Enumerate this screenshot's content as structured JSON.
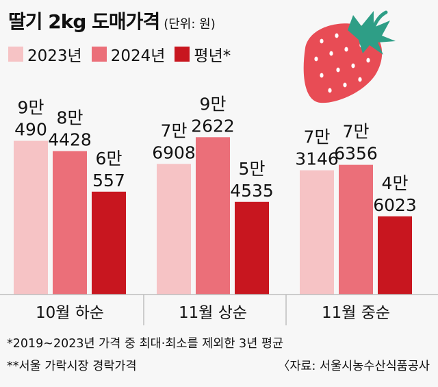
{
  "title": "딸기 2kg 도매가격",
  "unit": "(단위: 원)",
  "chart_data": {
    "type": "bar",
    "title": "딸기 2kg 도매가격",
    "unit": "(단위: 원)",
    "categories": [
      "10월 하순",
      "11월 상순",
      "11월 중순"
    ],
    "series": [
      {
        "name": "2023년",
        "color": "#f6c3c5",
        "values": [
          90490,
          76908,
          73146
        ],
        "labels": [
          [
            "9만",
            "490"
          ],
          [
            "7만",
            "6908"
          ],
          [
            "7만",
            "3146"
          ]
        ]
      },
      {
        "name": "2024년",
        "color": "#eb6f79",
        "values": [
          84428,
          92622,
          76356
        ],
        "labels": [
          [
            "8만",
            "4428"
          ],
          [
            "9만",
            "2622"
          ],
          [
            "7만",
            "6356"
          ]
        ]
      },
      {
        "name": "평년*",
        "color": "#c8161f",
        "values": [
          60557,
          54535,
          46023
        ],
        "labels": [
          [
            "6만",
            "557"
          ],
          [
            "5만",
            "4535"
          ],
          [
            "4만",
            "6023"
          ]
        ]
      }
    ],
    "ylim": [
      0,
      100000
    ],
    "legend": "top-left",
    "grid": false
  },
  "footnotes": {
    "note1": "*2019~2023년 가격 중 최대·최소를 제외한 3년 평균",
    "note2": "**서울 가락시장 경락가격",
    "source": "〈자료: 서울시농수산식품공사"
  },
  "colors": {
    "background": "#f7f7f7",
    "strawberry_body": "#e84c55",
    "strawberry_leaf": "#2e9e86",
    "divider": "#bdbdbd"
  }
}
